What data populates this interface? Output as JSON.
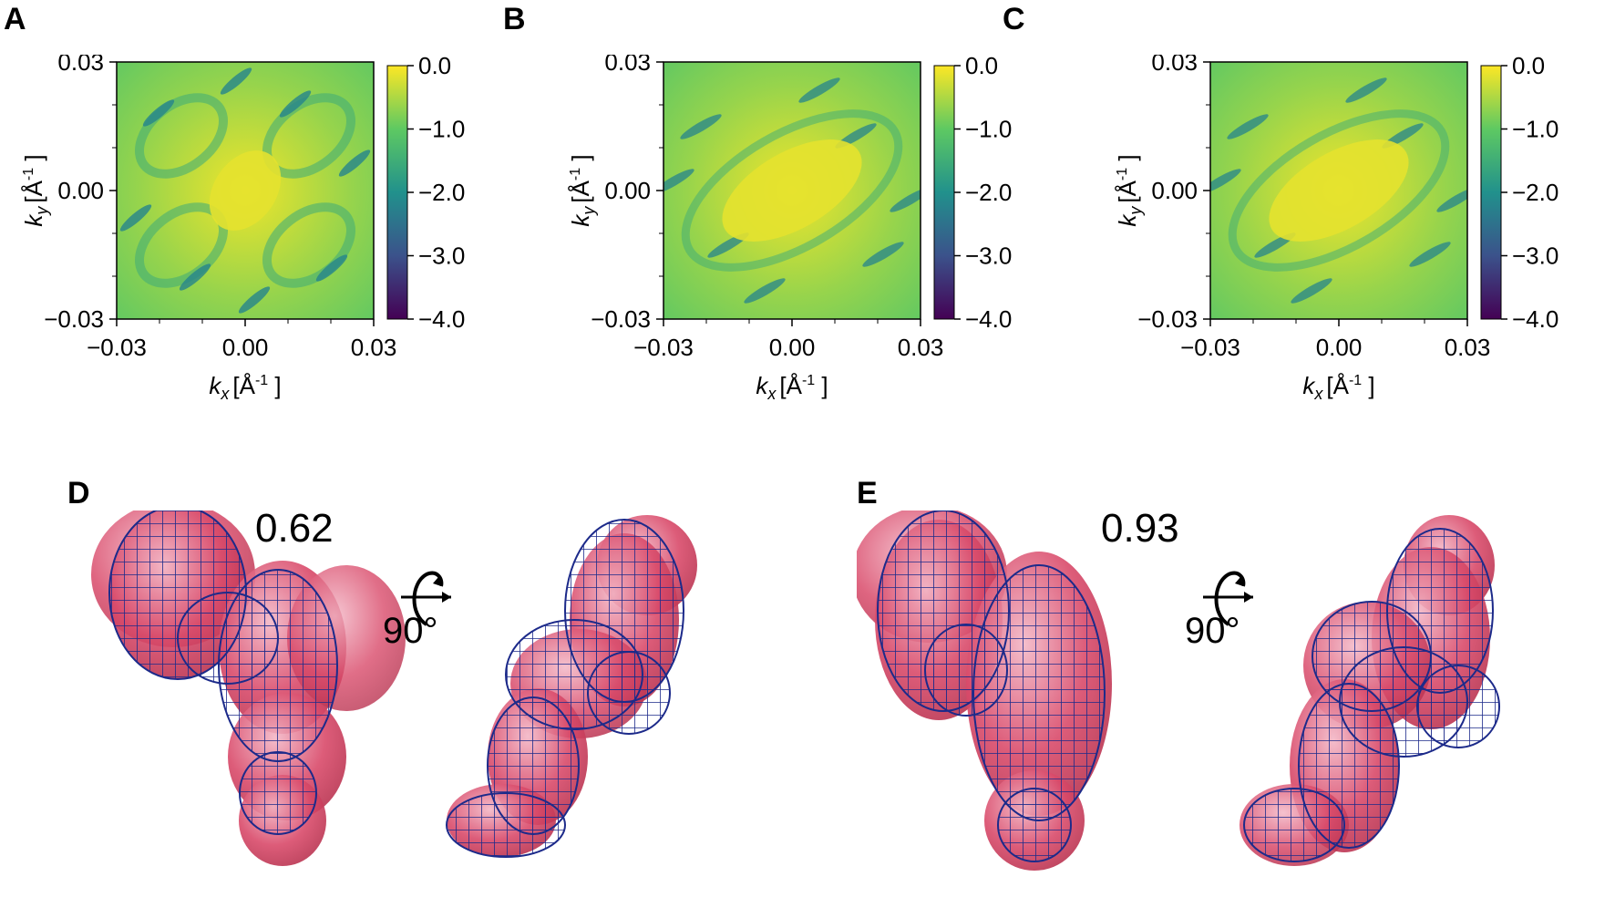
{
  "panels": {
    "a": "A",
    "b": "B",
    "c": "C",
    "d": "D",
    "e": "E"
  },
  "chart_data": [
    {
      "type": "heatmap",
      "panel": "A",
      "xlabel_main": "k",
      "xlabel_sub": "x",
      "xlabel_unit": "[Å",
      "xlabel_sup": "-1",
      "xlabel_end": " ]",
      "ylabel_main": "k",
      "ylabel_sub": "y",
      "ylabel_unit": "[Å",
      "ylabel_sup": "-1",
      "ylabel_end": " ]",
      "xlim": [
        -0.03,
        0.03
      ],
      "ylim": [
        -0.03,
        0.03
      ],
      "xticks": [
        "−0.03",
        "0.00",
        "0.03"
      ],
      "yticks": [
        "0.03",
        "0.00",
        "−0.03"
      ],
      "colorbar": {
        "range": [
          -4.0,
          0.0
        ],
        "ticks": [
          "0.0",
          "−1.0",
          "−2.0",
          "−3.0",
          "−4.0"
        ],
        "colormap": "viridis"
      },
      "pattern": "two-fold, lobes along upper-right diagonal",
      "max_at": [
        0.0,
        0.0
      ]
    },
    {
      "type": "heatmap",
      "panel": "B",
      "xlabel_main": "k",
      "xlabel_sub": "x",
      "xlabel_unit": "[Å",
      "xlabel_sup": "-1",
      "xlabel_end": " ]",
      "ylabel_main": "k",
      "ylabel_sub": "y",
      "ylabel_unit": "[Å",
      "ylabel_sup": "-1",
      "ylabel_end": " ]",
      "xlim": [
        -0.03,
        0.03
      ],
      "ylim": [
        -0.03,
        0.03
      ],
      "xticks": [
        "−0.03",
        "0.00",
        "0.03"
      ],
      "yticks": [
        "0.03",
        "0.00",
        "−0.03"
      ],
      "colorbar": {
        "range": [
          -4.0,
          0.0
        ],
        "ticks": [
          "0.0",
          "−1.0",
          "−2.0",
          "−3.0",
          "−4.0"
        ],
        "colormap": "viridis"
      },
      "pattern": "elongated central ellipse along upper-right diagonal",
      "max_at": [
        0.0,
        0.0
      ]
    },
    {
      "type": "heatmap",
      "panel": "C",
      "xlabel_main": "k",
      "xlabel_sub": "x",
      "xlabel_unit": "[Å",
      "xlabel_sup": "-1",
      "xlabel_end": " ]",
      "ylabel_main": "k",
      "ylabel_sub": "y",
      "ylabel_unit": "[Å",
      "ylabel_sup": "-1",
      "ylabel_end": " ]",
      "xlim": [
        -0.03,
        0.03
      ],
      "ylim": [
        -0.03,
        0.03
      ],
      "xticks": [
        "−0.03",
        "0.00",
        "0.03"
      ],
      "yticks": [
        "0.03",
        "0.00",
        "−0.03"
      ],
      "colorbar": {
        "range": [
          -4.0,
          0.0
        ],
        "ticks": [
          "0.0",
          "−1.0",
          "−2.0",
          "−3.0",
          "−4.0"
        ],
        "colormap": "viridis"
      },
      "pattern": "elongated central ellipse along upper-right diagonal",
      "max_at": [
        0.0,
        0.0
      ]
    }
  ],
  "structures": {
    "d": {
      "score": "0.62",
      "rotation": "90°"
    },
    "e": {
      "score": "0.93",
      "rotation": "90°"
    }
  },
  "colors": {
    "density_fill": "#d94a6a",
    "mesh": "#1c2a8a"
  }
}
